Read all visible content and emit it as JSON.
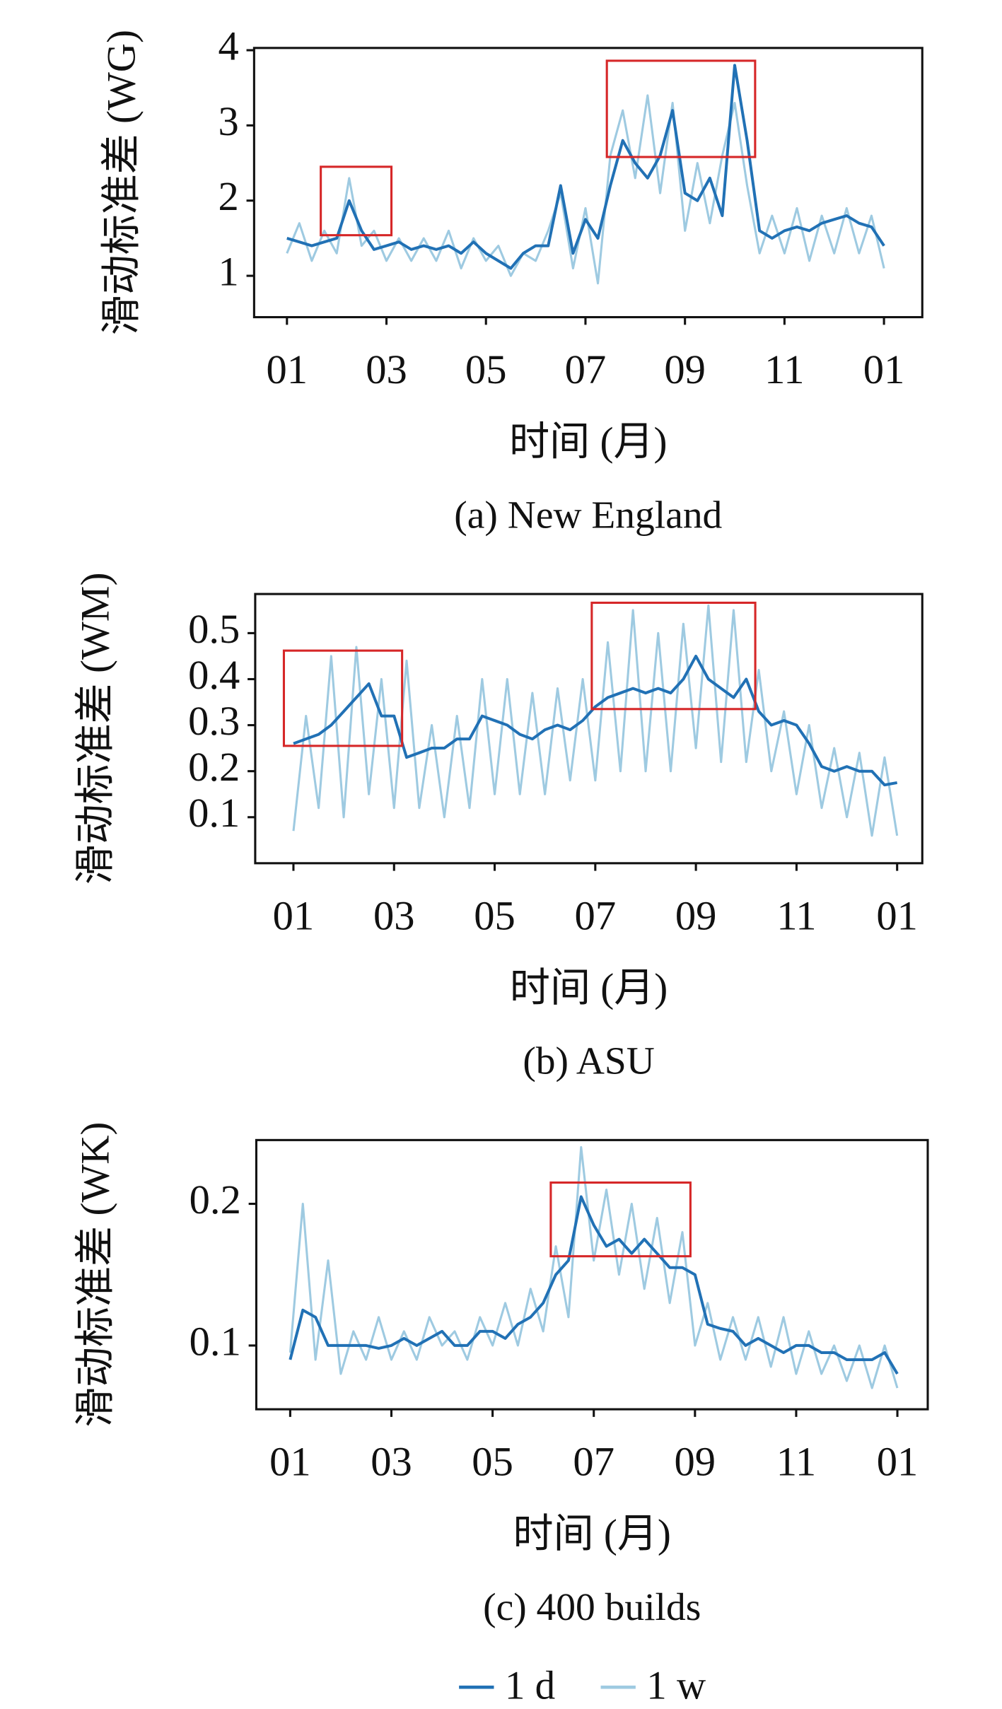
{
  "chart_data": [
    {
      "type": "line",
      "caption": "(a) New England",
      "xlabel": "时间 (月)",
      "ylabel": "滑动标准差 (WG)",
      "x": [
        0,
        0.25,
        0.5,
        0.75,
        1,
        1.25,
        1.5,
        1.75,
        2,
        2.25,
        2.5,
        2.75,
        3,
        3.25,
        3.5,
        3.75,
        4,
        4.25,
        4.5,
        4.75,
        5,
        5.25,
        5.5,
        5.75,
        6,
        6.25,
        6.5,
        6.75,
        7,
        7.25,
        7.5,
        7.75,
        8,
        8.25,
        8.5,
        8.75,
        9,
        9.25,
        9.5,
        9.75,
        10,
        10.25,
        10.5,
        10.75,
        11,
        11.25,
        11.5,
        11.75,
        12
      ],
      "series": [
        {
          "name": "1 d",
          "color": "#2171b5",
          "values": [
            1.5,
            1.45,
            1.4,
            1.45,
            1.5,
            2.0,
            1.6,
            1.35,
            1.4,
            1.45,
            1.35,
            1.4,
            1.35,
            1.4,
            1.3,
            1.45,
            1.3,
            1.2,
            1.1,
            1.3,
            1.4,
            1.4,
            2.2,
            1.3,
            1.75,
            1.5,
            2.2,
            2.8,
            2.5,
            2.3,
            2.6,
            3.2,
            2.1,
            2.0,
            2.3,
            1.8,
            3.8,
            2.8,
            1.6,
            1.5,
            1.6,
            1.65,
            1.6,
            1.7,
            1.75,
            1.8,
            1.7,
            1.65,
            1.4
          ]
        },
        {
          "name": "1 w",
          "color": "#9ecae1",
          "values": [
            1.3,
            1.7,
            1.2,
            1.6,
            1.3,
            2.3,
            1.4,
            1.6,
            1.2,
            1.5,
            1.2,
            1.5,
            1.2,
            1.6,
            1.1,
            1.5,
            1.2,
            1.4,
            1.0,
            1.3,
            1.2,
            1.6,
            2.1,
            1.1,
            1.9,
            0.9,
            2.6,
            3.2,
            2.3,
            3.4,
            2.1,
            3.3,
            1.6,
            2.5,
            1.7,
            2.6,
            3.3,
            2.2,
            1.3,
            1.8,
            1.3,
            1.9,
            1.2,
            1.8,
            1.3,
            1.9,
            1.3,
            1.8,
            1.1
          ]
        }
      ],
      "xlim": [
        -0.66,
        12.77
      ],
      "ylim": [
        0.45,
        4.03
      ],
      "xticks": [
        {
          "value": 0,
          "label": "01"
        },
        {
          "value": 2,
          "label": "03"
        },
        {
          "value": 4,
          "label": "05"
        },
        {
          "value": 6,
          "label": "07"
        },
        {
          "value": 8,
          "label": "09"
        },
        {
          "value": 10,
          "label": "11"
        },
        {
          "value": 12,
          "label": "01"
        }
      ],
      "yticks": [
        1,
        2,
        3,
        4
      ],
      "highlight_boxes": [
        {
          "x": [
            0.68,
            2.1
          ],
          "y": [
            1.54,
            2.45
          ],
          "color": "#d62728"
        },
        {
          "x": [
            6.43,
            9.41
          ],
          "y": [
            2.58,
            3.86
          ],
          "color": "#d62728"
        }
      ]
    },
    {
      "type": "line",
      "caption": "(b) ASU",
      "xlabel": "时间 (月)",
      "ylabel": "滑动标准差 (WM)",
      "x": [
        0,
        0.25,
        0.5,
        0.75,
        1,
        1.25,
        1.5,
        1.75,
        2,
        2.25,
        2.5,
        2.75,
        3,
        3.25,
        3.5,
        3.75,
        4,
        4.25,
        4.5,
        4.75,
        5,
        5.25,
        5.5,
        5.75,
        6,
        6.25,
        6.5,
        6.75,
        7,
        7.25,
        7.5,
        7.75,
        8,
        8.25,
        8.5,
        8.75,
        9,
        9.25,
        9.5,
        9.75,
        10,
        10.25,
        10.5,
        10.75,
        11,
        11.25,
        11.5,
        11.75,
        12
      ],
      "series": [
        {
          "name": "1 d",
          "color": "#2171b5",
          "values": [
            0.26,
            0.27,
            0.28,
            0.3,
            0.33,
            0.36,
            0.39,
            0.32,
            0.32,
            0.23,
            0.24,
            0.25,
            0.25,
            0.27,
            0.27,
            0.32,
            0.31,
            0.3,
            0.28,
            0.27,
            0.29,
            0.3,
            0.29,
            0.31,
            0.34,
            0.36,
            0.37,
            0.38,
            0.37,
            0.38,
            0.37,
            0.4,
            0.45,
            0.4,
            0.38,
            0.36,
            0.4,
            0.33,
            0.3,
            0.31,
            0.3,
            0.26,
            0.21,
            0.2,
            0.21,
            0.2,
            0.2,
            0.17,
            0.175
          ]
        },
        {
          "name": "1 w",
          "color": "#9ecae1",
          "values": [
            0.07,
            0.32,
            0.12,
            0.45,
            0.1,
            0.47,
            0.15,
            0.4,
            0.12,
            0.44,
            0.12,
            0.3,
            0.1,
            0.32,
            0.12,
            0.4,
            0.15,
            0.4,
            0.15,
            0.37,
            0.15,
            0.38,
            0.18,
            0.4,
            0.18,
            0.48,
            0.2,
            0.55,
            0.2,
            0.5,
            0.2,
            0.52,
            0.25,
            0.56,
            0.22,
            0.55,
            0.22,
            0.42,
            0.2,
            0.33,
            0.15,
            0.3,
            0.12,
            0.25,
            0.1,
            0.24,
            0.06,
            0.23,
            0.06
          ]
        }
      ],
      "xlim": [
        -0.76,
        12.5
      ],
      "ylim": [
        0,
        0.585
      ],
      "xticks": [
        {
          "value": 0,
          "label": "01"
        },
        {
          "value": 2,
          "label": "03"
        },
        {
          "value": 4,
          "label": "05"
        },
        {
          "value": 6,
          "label": "07"
        },
        {
          "value": 8,
          "label": "09"
        },
        {
          "value": 10,
          "label": "11"
        },
        {
          "value": 12,
          "label": "01"
        }
      ],
      "yticks": [
        0.1,
        0.2,
        0.3,
        0.4,
        0.5
      ],
      "highlight_boxes": [
        {
          "x": [
            -0.19,
            2.16
          ],
          "y": [
            0.255,
            0.462
          ],
          "color": "#d62728"
        },
        {
          "x": [
            5.93,
            9.18
          ],
          "y": [
            0.335,
            0.566
          ],
          "color": "#d62728"
        }
      ]
    },
    {
      "type": "line",
      "caption": "(c) 400 builds",
      "xlabel": "时间 (月)",
      "ylabel": "滑动标准差 (WK)",
      "x": [
        0,
        0.25,
        0.5,
        0.75,
        1,
        1.25,
        1.5,
        1.75,
        2,
        2.25,
        2.5,
        2.75,
        3,
        3.25,
        3.5,
        3.75,
        4,
        4.25,
        4.5,
        4.75,
        5,
        5.25,
        5.5,
        5.75,
        6,
        6.25,
        6.5,
        6.75,
        7,
        7.25,
        7.5,
        7.75,
        8,
        8.25,
        8.5,
        8.75,
        9,
        9.25,
        9.5,
        9.75,
        10,
        10.25,
        10.5,
        10.75,
        11,
        11.25,
        11.5,
        11.75,
        12
      ],
      "series": [
        {
          "name": "1 d",
          "color": "#2171b5",
          "values": [
            0.09,
            0.125,
            0.12,
            0.1,
            0.1,
            0.1,
            0.1,
            0.098,
            0.1,
            0.105,
            0.1,
            0.105,
            0.11,
            0.1,
            0.1,
            0.11,
            0.11,
            0.105,
            0.115,
            0.12,
            0.13,
            0.15,
            0.16,
            0.205,
            0.185,
            0.17,
            0.175,
            0.165,
            0.175,
            0.165,
            0.155,
            0.155,
            0.15,
            0.115,
            0.112,
            0.11,
            0.1,
            0.105,
            0.1,
            0.095,
            0.1,
            0.1,
            0.095,
            0.095,
            0.09,
            0.09,
            0.09,
            0.095,
            0.08
          ]
        },
        {
          "name": "1 w",
          "color": "#9ecae1",
          "values": [
            0.095,
            0.2,
            0.09,
            0.16,
            0.08,
            0.11,
            0.09,
            0.12,
            0.09,
            0.11,
            0.09,
            0.12,
            0.1,
            0.11,
            0.09,
            0.12,
            0.1,
            0.13,
            0.1,
            0.14,
            0.11,
            0.17,
            0.12,
            0.24,
            0.16,
            0.21,
            0.15,
            0.2,
            0.14,
            0.19,
            0.13,
            0.18,
            0.1,
            0.13,
            0.09,
            0.12,
            0.09,
            0.12,
            0.085,
            0.12,
            0.08,
            0.11,
            0.08,
            0.1,
            0.075,
            0.1,
            0.07,
            0.1,
            0.07
          ]
        }
      ],
      "xlim": [
        -0.67,
        12.6
      ],
      "ylim": [
        0.055,
        0.245
      ],
      "xticks": [
        {
          "value": 0,
          "label": "01"
        },
        {
          "value": 2,
          "label": "03"
        },
        {
          "value": 4,
          "label": "05"
        },
        {
          "value": 6,
          "label": "07"
        },
        {
          "value": 8,
          "label": "09"
        },
        {
          "value": 10,
          "label": "11"
        },
        {
          "value": 12,
          "label": "01"
        }
      ],
      "yticks": [
        0.1,
        0.2
      ],
      "highlight_boxes": [
        {
          "x": [
            5.15,
            7.91
          ],
          "y": [
            0.163,
            0.215
          ],
          "color": "#d62728"
        }
      ]
    }
  ]
}
